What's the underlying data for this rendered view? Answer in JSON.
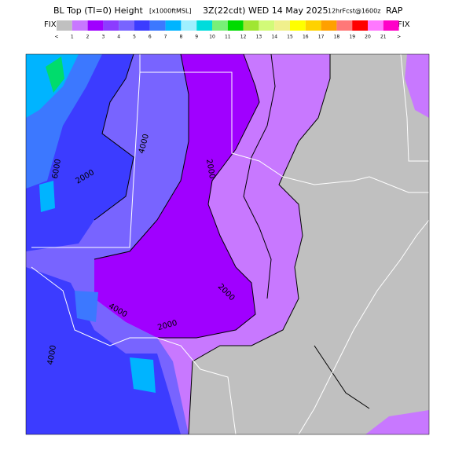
{
  "header": {
    "title": "BL Top (TI=0) Height",
    "units": "[x1000ftMSL]",
    "valid_time": "3Z(22cdt) WED 14 May 2025",
    "forecast": "12hrFcst@1600z",
    "model": "RAP"
  },
  "colorbar": {
    "left_label": "FIX",
    "right_label": "FIX",
    "ticks": [
      "<",
      "1",
      "2",
      "3",
      "4",
      "5",
      "6",
      "7",
      "8",
      "9",
      "10",
      "11",
      "12",
      "13",
      "14",
      "15",
      "16",
      "17",
      "18",
      "19",
      "20",
      "21",
      ">"
    ],
    "colors": [
      "#c0c0c0",
      "#c878ff",
      "#a000ff",
      "#8c3cff",
      "#7864ff",
      "#3c3cff",
      "#3c78ff",
      "#00b4ff",
      "#a0f0ff",
      "#00dcdc",
      "#78f078",
      "#00dc00",
      "#a0e632",
      "#d2fa78",
      "#f0f08c",
      "#ffff00",
      "#ffd200",
      "#ffa000",
      "#ff7878",
      "#ff0000",
      "#ff78ff",
      "#ff00c8"
    ]
  },
  "map": {
    "contour_labels": [
      "6000",
      "4000",
      "2000",
      "2000",
      "2000",
      "2000",
      "4000",
      "4000"
    ]
  }
}
